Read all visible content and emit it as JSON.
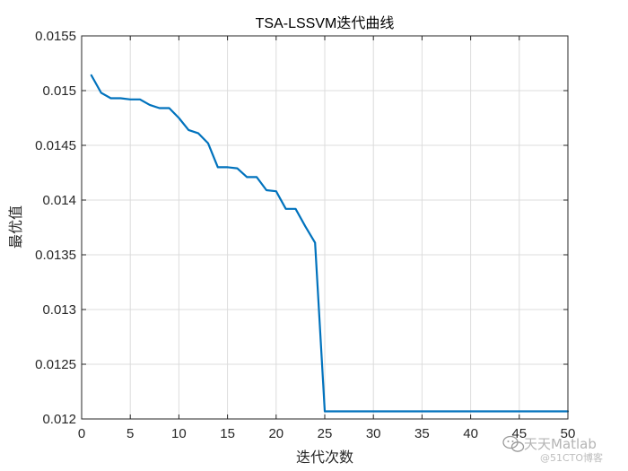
{
  "chart_data": {
    "type": "line",
    "title": "TSA-LSSVM迭代曲线",
    "xlabel": "迭代次数",
    "ylabel": "最优值",
    "xlim": [
      0,
      50
    ],
    "ylim": [
      0.012,
      0.0155
    ],
    "xticks": [
      0,
      5,
      10,
      15,
      20,
      25,
      30,
      35,
      40,
      45,
      50
    ],
    "xtick_labels": [
      "0",
      "5",
      "10",
      "15",
      "20",
      "25",
      "30",
      "35",
      "40",
      "45",
      "50"
    ],
    "yticks": [
      0.012,
      0.0125,
      0.013,
      0.0135,
      0.014,
      0.0145,
      0.015,
      0.0155
    ],
    "ytick_labels": [
      "0.012",
      "0.0125",
      "0.013",
      "0.0135",
      "0.014",
      "0.0145",
      "0.015",
      "0.0155"
    ],
    "grid": true,
    "series": [
      {
        "color": "#0072BD",
        "x": [
          1,
          2,
          3,
          4,
          5,
          6,
          7,
          8,
          9,
          10,
          11,
          12,
          13,
          14,
          15,
          16,
          17,
          18,
          19,
          20,
          21,
          22,
          23,
          24,
          25,
          26,
          27,
          28,
          29,
          30,
          31,
          32,
          33,
          34,
          35,
          36,
          37,
          38,
          39,
          40,
          41,
          42,
          43,
          44,
          45,
          46,
          47,
          48,
          49,
          50
        ],
        "y": [
          0.01514,
          0.01498,
          0.01493,
          0.01493,
          0.01492,
          0.01492,
          0.01487,
          0.01484,
          0.01484,
          0.01475,
          0.01464,
          0.01461,
          0.01452,
          0.0143,
          0.0143,
          0.01429,
          0.01421,
          0.01421,
          0.01409,
          0.01408,
          0.01392,
          0.01392,
          0.01376,
          0.01361,
          0.01207,
          0.01207,
          0.01207,
          0.01207,
          0.01207,
          0.01207,
          0.01207,
          0.01207,
          0.01207,
          0.01207,
          0.01207,
          0.01207,
          0.01207,
          0.01207,
          0.01207,
          0.01207,
          0.01207,
          0.01207,
          0.01207,
          0.01207,
          0.01207,
          0.01207,
          0.01207,
          0.01207,
          0.01207,
          0.01207
        ]
      }
    ]
  },
  "watermark": {
    "main": "天天Matlab",
    "sub": "@51CTO博客",
    "icon": "wechat-icon"
  },
  "colors": {
    "axes": "#262626",
    "grid": "#dcdcdc",
    "line": "#0072BD"
  }
}
